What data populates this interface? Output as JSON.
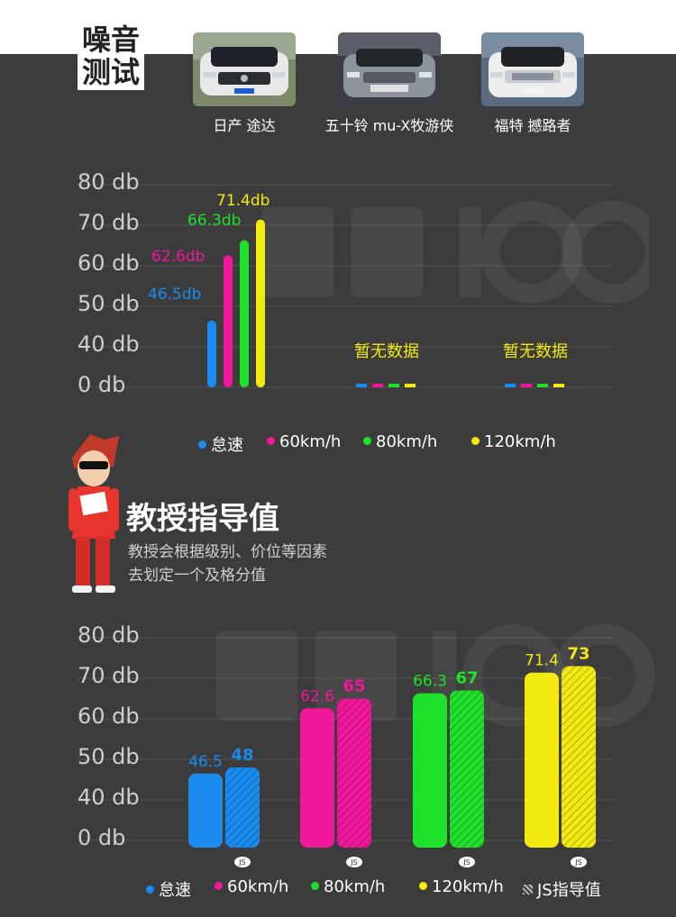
{
  "header": {
    "title_line1": "噪音",
    "title_line2": "测试"
  },
  "cars": [
    {
      "name": "日产 途达"
    },
    {
      "name": "五十铃 mu-X牧游侠"
    },
    {
      "name": "福特 撼路者"
    }
  ],
  "colors": {
    "idle": "#1a8cf0",
    "k60": "#f0179a",
    "k80": "#1fe02a",
    "k120": "#f2ea10"
  },
  "guide": {
    "title": "教授指导值",
    "desc_line1": "教授会根据级别、价位等因素",
    "desc_line2": "去划定一个及格分值"
  },
  "chart_data": [
    {
      "type": "bar",
      "y_ticks": [
        "80 db",
        "70 db",
        "60 db",
        "50 db",
        "40 db",
        "0 db"
      ],
      "groups": [
        {
          "name": "日产 途达",
          "values": [
            46.5,
            62.6,
            66.3,
            71.4
          ],
          "labels": [
            "46.5db",
            "62.6db",
            "66.3db",
            "71.4db"
          ],
          "note": ""
        },
        {
          "name": "五十铃 mu-X牧游侠",
          "values": [
            null,
            null,
            null,
            null
          ],
          "labels": [],
          "note": "暂无数据"
        },
        {
          "name": "福特 撼路者",
          "values": [
            null,
            null,
            null,
            null
          ],
          "labels": [],
          "note": "暂无数据"
        }
      ],
      "legend": [
        "怠速",
        "60km/h",
        "80km/h",
        "120km/h"
      ]
    },
    {
      "type": "bar",
      "y_ticks": [
        "80 db",
        "70 db",
        "60 db",
        "50 db",
        "40 db",
        "0 db"
      ],
      "categories": [
        "怠速",
        "60km/h",
        "80km/h",
        "120km/h"
      ],
      "series": [
        {
          "name": "日产 途达",
          "values": [
            46.5,
            62.6,
            66.3,
            71.4
          ],
          "labels": [
            "46.5",
            "62.6",
            "66.3",
            "71.4"
          ]
        },
        {
          "name": "JS指导值",
          "values": [
            48,
            65,
            67,
            73
          ],
          "labels": [
            "48",
            "65",
            "67",
            "73"
          ]
        }
      ],
      "js_badge": "JS",
      "legend": [
        "怠速",
        "60km/h",
        "80km/h",
        "120km/h",
        "JS指导值"
      ]
    }
  ]
}
